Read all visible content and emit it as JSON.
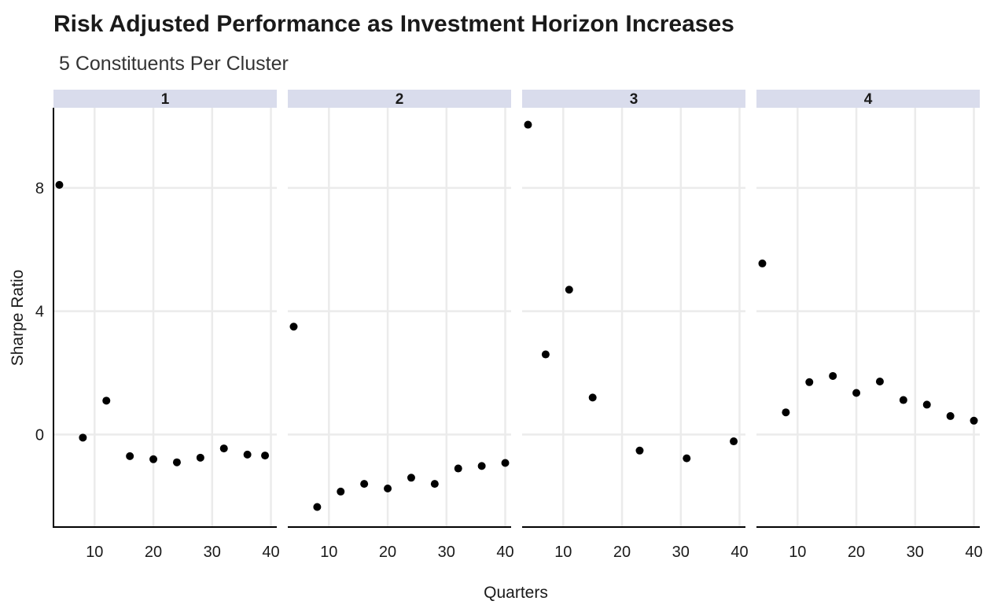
{
  "chart_data": {
    "type": "scatter",
    "title": "Risk Adjusted Performance as Investment Horizon Increases",
    "subtitle": "5 Constituents Per Cluster",
    "xlabel": "Quarters",
    "ylabel": "Sharpe Ratio",
    "xlim": [
      3,
      41
    ],
    "ylim": [
      -3.0,
      10.6
    ],
    "x_ticks": [
      10,
      20,
      30,
      40
    ],
    "y_ticks": [
      0,
      4,
      8
    ],
    "grid": true,
    "point_color": "#000000",
    "strip_color": "#d9dcec",
    "axis_color": "#000000",
    "grid_color": "#ebebeb",
    "facets": [
      {
        "label": "1",
        "points": [
          {
            "x": 4,
            "y": 8.1
          },
          {
            "x": 8,
            "y": -0.1
          },
          {
            "x": 12,
            "y": 1.1
          },
          {
            "x": 16,
            "y": -0.7
          },
          {
            "x": 20,
            "y": -0.8
          },
          {
            "x": 24,
            "y": -0.9
          },
          {
            "x": 28,
            "y": -0.75
          },
          {
            "x": 32,
            "y": -0.45
          },
          {
            "x": 36,
            "y": -0.65
          },
          {
            "x": 39,
            "y": -0.68
          }
        ]
      },
      {
        "label": "2",
        "points": [
          {
            "x": 4,
            "y": 3.5
          },
          {
            "x": 8,
            "y": -2.35
          },
          {
            "x": 12,
            "y": -1.85
          },
          {
            "x": 16,
            "y": -1.6
          },
          {
            "x": 20,
            "y": -1.75
          },
          {
            "x": 24,
            "y": -1.4
          },
          {
            "x": 28,
            "y": -1.6
          },
          {
            "x": 32,
            "y": -1.1
          },
          {
            "x": 36,
            "y": -1.02
          },
          {
            "x": 40,
            "y": -0.92
          }
        ]
      },
      {
        "label": "3",
        "points": [
          {
            "x": 4,
            "y": 10.05
          },
          {
            "x": 7,
            "y": 2.6
          },
          {
            "x": 11,
            "y": 4.7
          },
          {
            "x": 15,
            "y": 1.2
          },
          {
            "x": 23,
            "y": -0.52
          },
          {
            "x": 31,
            "y": -0.77
          },
          {
            "x": 39,
            "y": -0.22
          }
        ]
      },
      {
        "label": "4",
        "points": [
          {
            "x": 4,
            "y": 5.55
          },
          {
            "x": 8,
            "y": 0.72
          },
          {
            "x": 12,
            "y": 1.7
          },
          {
            "x": 16,
            "y": 1.9
          },
          {
            "x": 20,
            "y": 1.35
          },
          {
            "x": 24,
            "y": 1.72
          },
          {
            "x": 28,
            "y": 1.12
          },
          {
            "x": 32,
            "y": 0.97
          },
          {
            "x": 36,
            "y": 0.6
          },
          {
            "x": 40,
            "y": 0.45
          }
        ]
      }
    ]
  }
}
